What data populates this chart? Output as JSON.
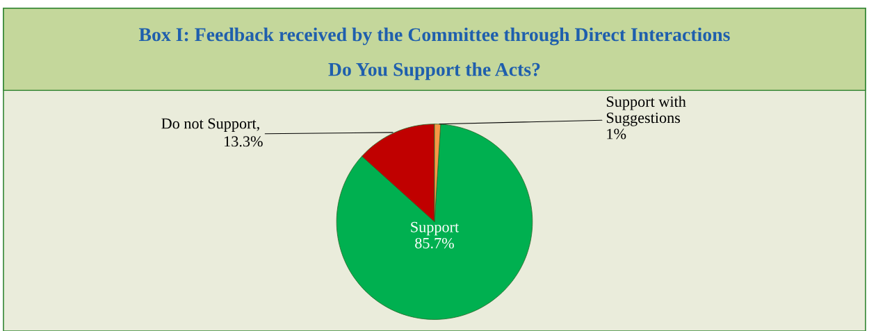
{
  "chart_data": {
    "type": "pie",
    "title": "Box I: Feedback received by the Committee through Direct Interactions",
    "subtitle": "Do You Support the Acts?",
    "categories": [
      "Support",
      "Do not Support",
      "Support with\nSuggestions"
    ],
    "values": [
      85.7,
      13.3,
      1
    ],
    "value_labels": [
      "85.7%",
      "13.3%",
      "1%"
    ],
    "colors": [
      "#00b050",
      "#c00000",
      "#f79646"
    ],
    "annotations": [
      ","
    ],
    "legend": false
  }
}
